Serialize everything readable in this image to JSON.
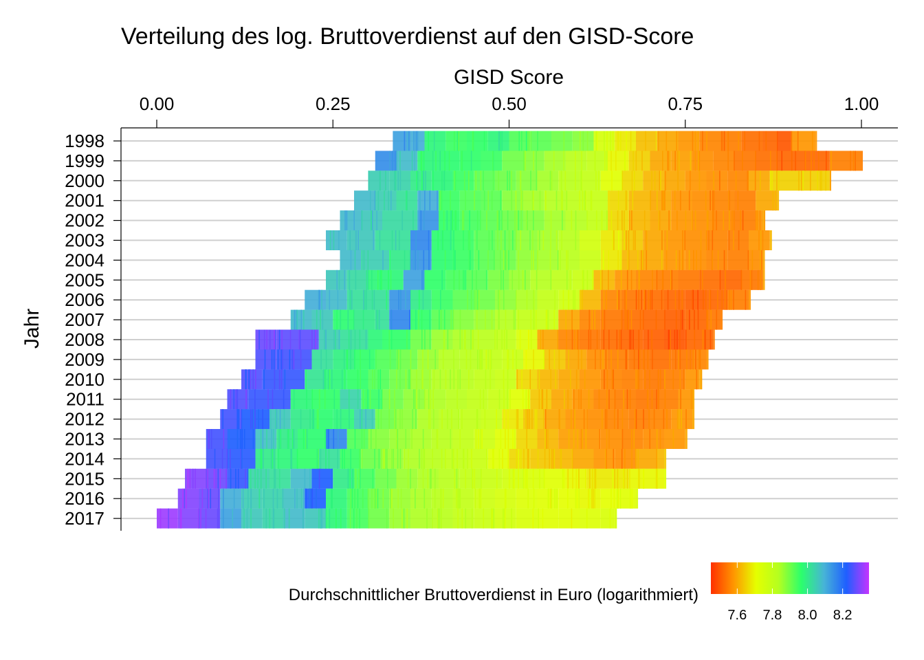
{
  "chart_data": {
    "type": "heatmap",
    "title": "Verteilung des log. Bruttoverdienst auf den GISD-Score",
    "xlabel": "GISD Score",
    "ylabel": "Jahr",
    "x_axis_position": "top",
    "xlim": [
      -0.05,
      1.05
    ],
    "x_ticks": [
      "0.00",
      "0.25",
      "0.50",
      "0.75",
      "1.00"
    ],
    "y_ticks": [
      "1998",
      "1999",
      "2000",
      "2001",
      "2002",
      "2003",
      "2004",
      "2005",
      "2006",
      "2007",
      "2008",
      "2009",
      "2010",
      "2011",
      "2012",
      "2013",
      "2014",
      "2015",
      "2016",
      "2017"
    ],
    "grid": "horizontal",
    "legend": {
      "title": "Durchschnittlicher Bruttoverdienst in Euro (logarithmiert)",
      "position": "bottom",
      "range": [
        7.45,
        8.35
      ],
      "ticks": [
        "7.6",
        "7.8",
        "8.0",
        "8.2"
      ],
      "colors": [
        "#ff3000",
        "#ff9500",
        "#e5ff00",
        "#b4ff20",
        "#2bff6c",
        "#47b4d6",
        "#1f5fff",
        "#c534ff"
      ]
    },
    "series": [
      {
        "name": "1998",
        "x": [
          0.335,
          0.36,
          0.38,
          0.41,
          0.44,
          0.47,
          0.5,
          0.53,
          0.56,
          0.59,
          0.62,
          0.65,
          0.68,
          0.71,
          0.74,
          0.77,
          0.8,
          0.83,
          0.86,
          0.88,
          0.9,
          0.935
        ],
        "values": [
          8.12,
          8.1,
          7.98,
          7.95,
          7.96,
          7.98,
          7.93,
          7.92,
          7.9,
          7.88,
          7.75,
          7.68,
          7.63,
          7.6,
          7.58,
          7.56,
          7.55,
          7.53,
          7.52,
          7.5,
          7.58,
          7.58
        ]
      },
      {
        "name": "1999",
        "x": [
          0.31,
          0.34,
          0.37,
          0.4,
          0.43,
          0.46,
          0.49,
          0.52,
          0.55,
          0.58,
          0.61,
          0.64,
          0.67,
          0.7,
          0.73,
          0.76,
          0.79,
          0.82,
          0.85,
          0.88,
          0.955,
          1.0
        ],
        "values": [
          8.15,
          8.08,
          7.98,
          7.97,
          7.96,
          7.95,
          7.9,
          7.88,
          7.85,
          7.82,
          7.8,
          7.7,
          7.65,
          7.6,
          7.59,
          7.57,
          7.56,
          7.54,
          7.53,
          7.52,
          7.55,
          7.55
        ]
      },
      {
        "name": "2000",
        "x": [
          0.3,
          0.33,
          0.36,
          0.39,
          0.42,
          0.45,
          0.48,
          0.51,
          0.54,
          0.57,
          0.6,
          0.63,
          0.66,
          0.69,
          0.72,
          0.75,
          0.78,
          0.81,
          0.84,
          0.87,
          0.955
        ],
        "values": [
          8.05,
          8.04,
          8.0,
          7.98,
          7.95,
          7.92,
          7.9,
          7.88,
          7.85,
          7.82,
          7.8,
          7.72,
          7.66,
          7.62,
          7.6,
          7.58,
          7.57,
          7.56,
          7.6,
          7.65,
          7.6
        ]
      },
      {
        "name": "2001",
        "x": [
          0.28,
          0.31,
          0.34,
          0.37,
          0.4,
          0.43,
          0.46,
          0.49,
          0.52,
          0.55,
          0.58,
          0.61,
          0.64,
          0.67,
          0.7,
          0.73,
          0.76,
          0.79,
          0.82,
          0.85,
          0.88
        ],
        "values": [
          8.08,
          8.05,
          8.02,
          8.1,
          7.95,
          7.93,
          7.92,
          7.88,
          7.85,
          7.83,
          7.81,
          7.79,
          7.66,
          7.62,
          7.6,
          7.58,
          7.57,
          7.56,
          7.55,
          7.6,
          7.62
        ]
      },
      {
        "name": "2002",
        "x": [
          0.26,
          0.29,
          0.32,
          0.37,
          0.4,
          0.43,
          0.46,
          0.49,
          0.52,
          0.55,
          0.58,
          0.61,
          0.64,
          0.67,
          0.7,
          0.73,
          0.76,
          0.79,
          0.82,
          0.85,
          0.86
        ],
        "values": [
          8.08,
          8.06,
          8.03,
          8.14,
          7.96,
          7.94,
          7.92,
          7.9,
          7.88,
          7.85,
          7.83,
          7.8,
          7.66,
          7.62,
          7.6,
          7.58,
          7.57,
          7.56,
          7.55,
          7.58,
          7.6
        ]
      },
      {
        "name": "2003",
        "x": [
          0.24,
          0.27,
          0.31,
          0.36,
          0.39,
          0.42,
          0.45,
          0.48,
          0.51,
          0.54,
          0.57,
          0.6,
          0.63,
          0.66,
          0.69,
          0.72,
          0.75,
          0.78,
          0.81,
          0.84,
          0.87
        ],
        "values": [
          8.08,
          8.06,
          8.02,
          8.16,
          7.97,
          7.95,
          7.92,
          7.9,
          7.87,
          7.85,
          7.82,
          7.76,
          7.68,
          7.64,
          7.6,
          7.58,
          7.57,
          7.56,
          7.55,
          7.58,
          7.62
        ]
      },
      {
        "name": "2004",
        "x": [
          0.26,
          0.29,
          0.33,
          0.36,
          0.39,
          0.42,
          0.45,
          0.48,
          0.51,
          0.54,
          0.57,
          0.6,
          0.63,
          0.66,
          0.69,
          0.72,
          0.75,
          0.78,
          0.81,
          0.84,
          0.86
        ],
        "values": [
          8.08,
          8.05,
          8.0,
          8.14,
          7.97,
          7.95,
          7.92,
          7.9,
          7.87,
          7.85,
          7.82,
          7.78,
          7.68,
          7.62,
          7.6,
          7.58,
          7.57,
          7.56,
          7.55,
          7.57,
          7.6
        ]
      },
      {
        "name": "2005",
        "x": [
          0.24,
          0.27,
          0.3,
          0.35,
          0.38,
          0.41,
          0.44,
          0.47,
          0.5,
          0.53,
          0.56,
          0.59,
          0.62,
          0.65,
          0.68,
          0.71,
          0.74,
          0.77,
          0.8,
          0.83,
          0.86
        ],
        "values": [
          8.06,
          8.03,
          7.98,
          8.12,
          7.96,
          7.94,
          7.92,
          7.89,
          7.86,
          7.83,
          7.81,
          7.78,
          7.62,
          7.58,
          7.56,
          7.55,
          7.54,
          7.53,
          7.52,
          7.54,
          7.6
        ]
      },
      {
        "name": "2006",
        "x": [
          0.21,
          0.24,
          0.27,
          0.33,
          0.36,
          0.39,
          0.42,
          0.45,
          0.48,
          0.51,
          0.54,
          0.57,
          0.6,
          0.63,
          0.66,
          0.69,
          0.72,
          0.75,
          0.78,
          0.81,
          0.84
        ],
        "values": [
          8.1,
          8.08,
          8.02,
          8.14,
          8.0,
          7.95,
          7.92,
          7.9,
          7.87,
          7.84,
          7.8,
          7.77,
          7.62,
          7.56,
          7.54,
          7.53,
          7.52,
          7.51,
          7.52,
          7.55,
          7.58
        ]
      },
      {
        "name": "2007",
        "x": [
          0.19,
          0.22,
          0.25,
          0.28,
          0.31,
          0.33,
          0.36,
          0.39,
          0.42,
          0.45,
          0.48,
          0.51,
          0.54,
          0.57,
          0.6,
          0.63,
          0.66,
          0.69,
          0.72,
          0.75,
          0.78,
          0.8
        ],
        "values": [
          8.08,
          8.06,
          7.97,
          8.0,
          8.02,
          8.16,
          7.96,
          7.92,
          7.88,
          7.86,
          7.83,
          7.8,
          7.78,
          7.6,
          7.56,
          7.54,
          7.53,
          7.52,
          7.51,
          7.52,
          7.54,
          7.55
        ]
      },
      {
        "name": "2008",
        "x": [
          0.14,
          0.17,
          0.23,
          0.26,
          0.3,
          0.32,
          0.36,
          0.39,
          0.42,
          0.45,
          0.48,
          0.51,
          0.54,
          0.57,
          0.6,
          0.63,
          0.66,
          0.69,
          0.72,
          0.75,
          0.79
        ],
        "values": [
          8.28,
          8.27,
          8.05,
          8.02,
          7.98,
          7.96,
          7.9,
          7.86,
          7.84,
          7.82,
          7.8,
          7.74,
          7.6,
          7.56,
          7.54,
          7.53,
          7.52,
          7.51,
          7.5,
          7.52,
          7.55
        ]
      },
      {
        "name": "2009",
        "x": [
          0.14,
          0.17,
          0.22,
          0.25,
          0.28,
          0.31,
          0.34,
          0.37,
          0.4,
          0.43,
          0.46,
          0.49,
          0.52,
          0.55,
          0.58,
          0.61,
          0.64,
          0.67,
          0.7,
          0.73,
          0.76,
          0.78
        ],
        "values": [
          8.26,
          8.25,
          8.02,
          7.99,
          7.96,
          7.93,
          7.9,
          7.86,
          7.83,
          7.82,
          7.8,
          7.78,
          7.7,
          7.64,
          7.6,
          7.57,
          7.55,
          7.54,
          7.53,
          7.54,
          7.56,
          7.58
        ]
      },
      {
        "name": "2010",
        "x": [
          0.12,
          0.15,
          0.21,
          0.24,
          0.27,
          0.3,
          0.33,
          0.36,
          0.39,
          0.42,
          0.45,
          0.48,
          0.51,
          0.54,
          0.57,
          0.6,
          0.63,
          0.66,
          0.69,
          0.72,
          0.75,
          0.77
        ],
        "values": [
          8.26,
          8.24,
          8.01,
          7.98,
          7.96,
          7.93,
          7.9,
          7.86,
          7.83,
          7.82,
          7.8,
          7.78,
          7.66,
          7.62,
          7.6,
          7.58,
          7.56,
          7.55,
          7.54,
          7.55,
          7.58,
          7.6
        ]
      },
      {
        "name": "2011",
        "x": [
          0.1,
          0.13,
          0.19,
          0.22,
          0.26,
          0.29,
          0.32,
          0.35,
          0.38,
          0.41,
          0.44,
          0.47,
          0.5,
          0.53,
          0.56,
          0.59,
          0.62,
          0.65,
          0.68,
          0.71,
          0.74,
          0.76
        ],
        "values": [
          8.26,
          8.24,
          7.98,
          7.96,
          8.04,
          7.95,
          7.9,
          7.87,
          7.84,
          7.82,
          7.8,
          7.78,
          7.72,
          7.64,
          7.6,
          7.58,
          7.56,
          7.55,
          7.54,
          7.55,
          7.58,
          7.6
        ]
      },
      {
        "name": "2012",
        "x": [
          0.09,
          0.12,
          0.16,
          0.19,
          0.22,
          0.25,
          0.28,
          0.31,
          0.34,
          0.37,
          0.4,
          0.43,
          0.46,
          0.49,
          0.52,
          0.55,
          0.58,
          0.61,
          0.64,
          0.67,
          0.7,
          0.73,
          0.76
        ],
        "values": [
          8.25,
          8.22,
          8.06,
          8.0,
          7.97,
          7.98,
          8.05,
          7.9,
          7.87,
          7.84,
          7.82,
          7.8,
          7.78,
          7.68,
          7.64,
          7.6,
          7.58,
          7.57,
          7.56,
          7.55,
          7.56,
          7.58,
          7.6
        ]
      },
      {
        "name": "2013",
        "x": [
          0.07,
          0.1,
          0.14,
          0.17,
          0.2,
          0.24,
          0.27,
          0.3,
          0.33,
          0.36,
          0.39,
          0.42,
          0.45,
          0.48,
          0.51,
          0.54,
          0.57,
          0.6,
          0.63,
          0.66,
          0.69,
          0.72,
          0.75
        ],
        "values": [
          8.25,
          8.22,
          8.07,
          8.0,
          7.97,
          8.16,
          7.93,
          7.88,
          7.86,
          7.84,
          7.82,
          7.8,
          7.77,
          7.72,
          7.66,
          7.62,
          7.59,
          7.58,
          7.57,
          7.56,
          7.57,
          7.58,
          7.6
        ]
      },
      {
        "name": "2014",
        "x": [
          0.07,
          0.1,
          0.14,
          0.17,
          0.2,
          0.23,
          0.26,
          0.29,
          0.32,
          0.35,
          0.38,
          0.41,
          0.44,
          0.47,
          0.5,
          0.53,
          0.56,
          0.59,
          0.62,
          0.65,
          0.68,
          0.71,
          0.72
        ],
        "values": [
          8.25,
          8.23,
          8.0,
          7.98,
          7.96,
          8.02,
          7.95,
          7.9,
          7.86,
          7.84,
          7.82,
          7.8,
          7.78,
          7.72,
          7.66,
          7.64,
          7.62,
          7.6,
          7.58,
          7.57,
          7.6,
          7.62,
          7.64
        ]
      },
      {
        "name": "2015",
        "x": [
          0.04,
          0.07,
          0.1,
          0.13,
          0.16,
          0.19,
          0.22,
          0.25,
          0.28,
          0.31,
          0.34,
          0.37,
          0.4,
          0.43,
          0.46,
          0.49,
          0.52,
          0.55,
          0.58,
          0.61,
          0.64,
          0.67,
          0.7,
          0.72
        ],
        "values": [
          8.3,
          8.28,
          8.24,
          8.04,
          8.02,
          8.08,
          8.22,
          8.0,
          7.94,
          7.9,
          7.86,
          7.84,
          7.82,
          7.8,
          7.78,
          7.76,
          7.74,
          7.72,
          7.7,
          7.68,
          7.68,
          7.7,
          7.7,
          7.72
        ]
      },
      {
        "name": "2016",
        "x": [
          0.03,
          0.06,
          0.09,
          0.12,
          0.15,
          0.18,
          0.21,
          0.24,
          0.27,
          0.3,
          0.33,
          0.36,
          0.39,
          0.42,
          0.45,
          0.48,
          0.51,
          0.54,
          0.57,
          0.6,
          0.63,
          0.66,
          0.68
        ],
        "values": [
          8.3,
          8.28,
          8.1,
          8.05,
          8.04,
          8.07,
          8.22,
          7.98,
          7.94,
          7.9,
          7.86,
          7.84,
          7.82,
          7.8,
          7.77,
          7.75,
          7.73,
          7.72,
          7.71,
          7.7,
          7.71,
          7.72,
          7.74
        ]
      },
      {
        "name": "2017",
        "x": [
          0.0,
          0.03,
          0.06,
          0.09,
          0.12,
          0.15,
          0.18,
          0.21,
          0.24,
          0.27,
          0.3,
          0.33,
          0.36,
          0.39,
          0.42,
          0.45,
          0.48,
          0.51,
          0.54,
          0.57,
          0.6,
          0.63,
          0.65
        ],
        "values": [
          8.32,
          8.3,
          8.28,
          8.12,
          8.06,
          8.04,
          8.08,
          8.06,
          7.98,
          7.94,
          7.9,
          7.86,
          7.84,
          7.82,
          7.8,
          7.78,
          7.76,
          7.74,
          7.72,
          7.72,
          7.73,
          7.74,
          7.75
        ]
      }
    ]
  }
}
